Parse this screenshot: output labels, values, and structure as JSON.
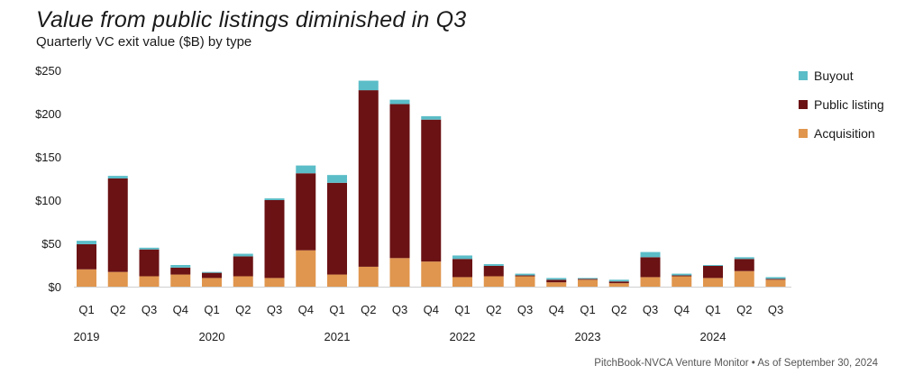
{
  "header": {
    "title": "Value from public listings diminished in Q3",
    "subtitle": "Quarterly VC exit value ($B) by type"
  },
  "source": "PitchBook-NVCA Venture Monitor  •  As of September 30, 2024",
  "chart_data": {
    "type": "bar",
    "stacked": true,
    "title": "Value from public listings diminished in Q3",
    "subtitle": "Quarterly VC exit value ($B) by type",
    "categories": [
      "Q1",
      "Q2",
      "Q3",
      "Q4",
      "Q1",
      "Q2",
      "Q3",
      "Q4",
      "Q1",
      "Q2",
      "Q3",
      "Q4",
      "Q1",
      "Q2",
      "Q3",
      "Q4",
      "Q1",
      "Q2",
      "Q3",
      "Q4",
      "Q1",
      "Q2",
      "Q3"
    ],
    "year_labels": [
      {
        "label": "2019",
        "index": 0
      },
      {
        "label": "2020",
        "index": 4
      },
      {
        "label": "2021",
        "index": 8
      },
      {
        "label": "2022",
        "index": 12
      },
      {
        "label": "2023",
        "index": 16
      },
      {
        "label": "2024",
        "index": 20
      }
    ],
    "series": [
      {
        "name": "Acquisition",
        "color": "#E0964E",
        "values": [
          20,
          17,
          12,
          14,
          10,
          12,
          10,
          42,
          14,
          23,
          33,
          29,
          11,
          12,
          12,
          5,
          8,
          4,
          11,
          12,
          10,
          18,
          8
        ]
      },
      {
        "name": "Public listing",
        "color": "#6B1214",
        "values": [
          29,
          108,
          31,
          8,
          6,
          23,
          90,
          89,
          106,
          204,
          178,
          164,
          21,
          12,
          1,
          3,
          1,
          2,
          23,
          1,
          14,
          14,
          1
        ]
      },
      {
        "name": "Buyout",
        "color": "#5BBDC8",
        "values": [
          4,
          3,
          2,
          3,
          1,
          3,
          2,
          9,
          9,
          11,
          5,
          4,
          4,
          2,
          2,
          2,
          1,
          2,
          6,
          2,
          1,
          2,
          2
        ]
      }
    ],
    "legend_order": [
      "Buyout",
      "Public listing",
      "Acquisition"
    ],
    "y_ticks": [
      "$0",
      "$50",
      "$100",
      "$150",
      "$200",
      "$250"
    ],
    "ylim": [
      0,
      250
    ],
    "grid": false,
    "legend_position": "right"
  }
}
